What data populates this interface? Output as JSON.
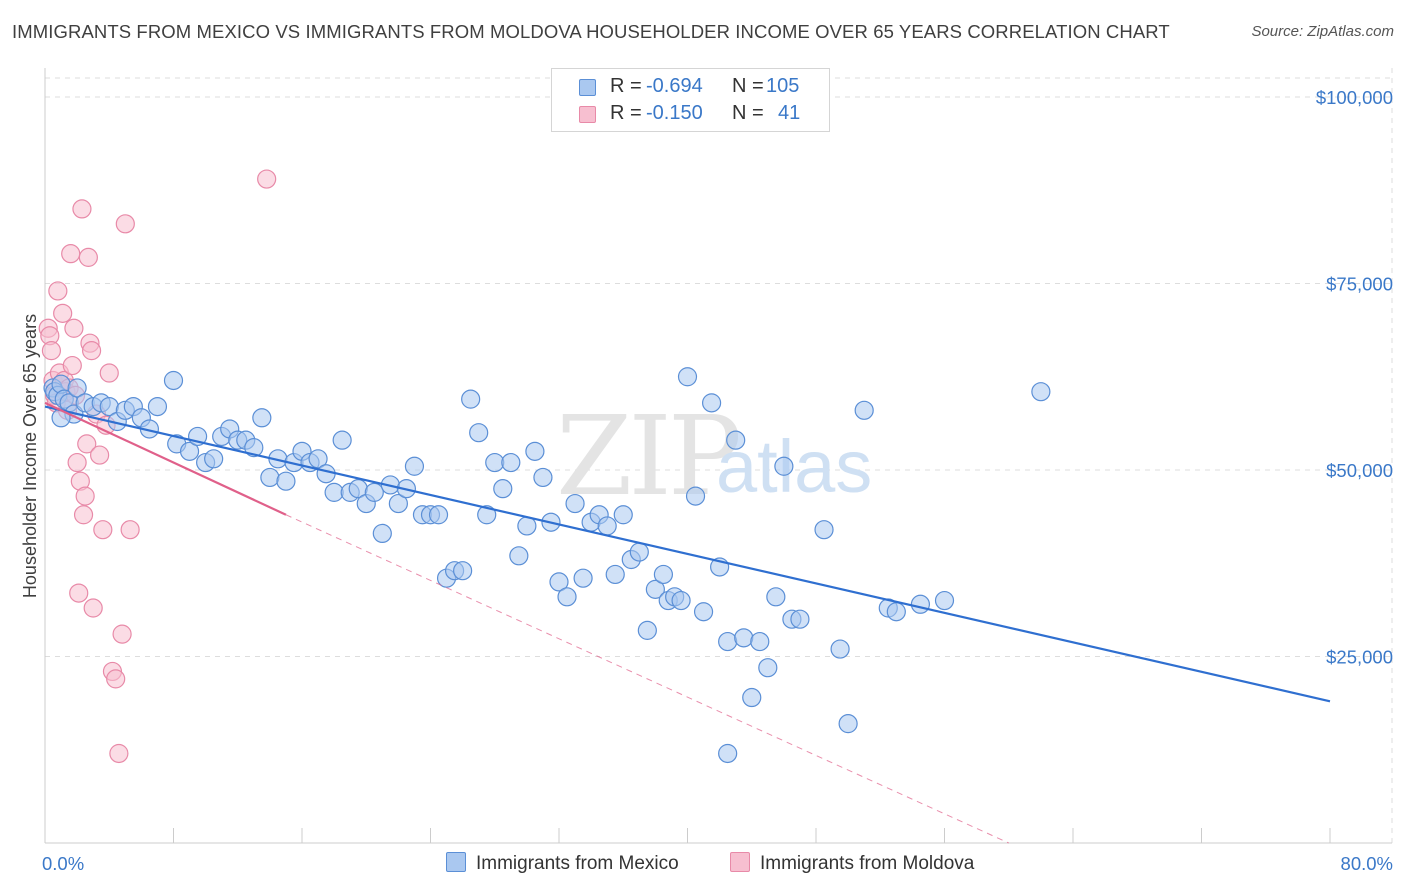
{
  "title": "IMMIGRANTS FROM MEXICO VS IMMIGRANTS FROM MOLDOVA HOUSEHOLDER INCOME OVER 65 YEARS CORRELATION CHART",
  "source": "Source: ZipAtlas.com",
  "watermark": {
    "zip": "ZIP",
    "atlas": "atlas"
  },
  "legend": {
    "rows": [
      {
        "r_label": "R =",
        "r_value": "-0.694",
        "n_label": "N =",
        "n_value": "105"
      },
      {
        "r_label": "R =",
        "r_value": "-0.150",
        "n_label": "N =",
        "n_value": "41"
      }
    ]
  },
  "bottom_legend": [
    "Immigrants from Mexico",
    "Immigrants from Moldova"
  ],
  "colors": {
    "mexico_fill": "#aac8f0",
    "mexico_stroke": "#5b8fd6",
    "mexico_line": "#2f6fd0",
    "moldova_fill": "#f7bfd0",
    "moldova_stroke": "#e88aa8",
    "moldova_line": "#e0608a",
    "tick_text": "#3a78c8",
    "grid": "#dddddd"
  },
  "chart_data": {
    "type": "scatter",
    "title": "IMMIGRANTS FROM MEXICO VS IMMIGRANTS FROM MOLDOVA HOUSEHOLDER INCOME OVER 65 YEARS CORRELATION CHART",
    "xlabel": "",
    "ylabel": "Householder Income Over 65 years",
    "xlim": [
      0,
      80
    ],
    "ylim": [
      0,
      105000
    ],
    "x_tick_labels": [
      "0.0%",
      "80.0%"
    ],
    "y_ticks": [
      25000,
      50000,
      75000,
      100000
    ],
    "y_tick_labels": [
      "$25,000",
      "$50,000",
      "$75,000",
      "$100,000"
    ],
    "series": [
      {
        "name": "Immigrants from Mexico",
        "r": -0.694,
        "n": 105,
        "trend": {
          "x": [
            0,
            80
          ],
          "y": [
            58500,
            19000
          ]
        },
        "points": [
          [
            0.5,
            61000
          ],
          [
            0.6,
            60500
          ],
          [
            0.8,
            60000
          ],
          [
            1.0,
            61500
          ],
          [
            1.2,
            59500
          ],
          [
            1.5,
            59000
          ],
          [
            1.8,
            57500
          ],
          [
            2.0,
            61000
          ],
          [
            2.5,
            59000
          ],
          [
            3.0,
            58500
          ],
          [
            3.5,
            59000
          ],
          [
            4.0,
            58500
          ],
          [
            4.5,
            56500
          ],
          [
            5.0,
            58000
          ],
          [
            5.5,
            58500
          ],
          [
            6.0,
            57000
          ],
          [
            6.5,
            55500
          ],
          [
            7.0,
            58500
          ],
          [
            8.0,
            62000
          ],
          [
            8.2,
            53500
          ],
          [
            9.0,
            52500
          ],
          [
            9.5,
            54500
          ],
          [
            10.0,
            51000
          ],
          [
            10.5,
            51500
          ],
          [
            11.0,
            54500
          ],
          [
            11.5,
            55500
          ],
          [
            12.0,
            54000
          ],
          [
            12.5,
            54000
          ],
          [
            13.0,
            53000
          ],
          [
            13.5,
            57000
          ],
          [
            14.0,
            49000
          ],
          [
            14.5,
            51500
          ],
          [
            15.0,
            48500
          ],
          [
            15.5,
            51000
          ],
          [
            16.0,
            52500
          ],
          [
            16.5,
            51000
          ],
          [
            17.0,
            51500
          ],
          [
            17.5,
            49500
          ],
          [
            18.0,
            47000
          ],
          [
            18.5,
            54000
          ],
          [
            19.0,
            47000
          ],
          [
            19.5,
            47500
          ],
          [
            20.0,
            45500
          ],
          [
            20.5,
            47000
          ],
          [
            21.0,
            41500
          ],
          [
            21.5,
            48000
          ],
          [
            22.0,
            45500
          ],
          [
            22.5,
            47500
          ],
          [
            23.0,
            50500
          ],
          [
            23.5,
            44000
          ],
          [
            24.0,
            44000
          ],
          [
            24.5,
            44000
          ],
          [
            25.0,
            35500
          ],
          [
            25.5,
            36500
          ],
          [
            26.0,
            36500
          ],
          [
            26.5,
            59500
          ],
          [
            27.0,
            55000
          ],
          [
            27.5,
            44000
          ],
          [
            28.0,
            51000
          ],
          [
            28.5,
            47500
          ],
          [
            29.0,
            51000
          ],
          [
            29.5,
            38500
          ],
          [
            30.0,
            42500
          ],
          [
            30.5,
            52500
          ],
          [
            31.0,
            49000
          ],
          [
            31.5,
            43000
          ],
          [
            32.0,
            35000
          ],
          [
            32.5,
            33000
          ],
          [
            33.0,
            45500
          ],
          [
            33.5,
            35500
          ],
          [
            34.0,
            43000
          ],
          [
            34.5,
            44000
          ],
          [
            35.0,
            42500
          ],
          [
            35.5,
            36000
          ],
          [
            36.0,
            44000
          ],
          [
            36.5,
            38000
          ],
          [
            37.0,
            39000
          ],
          [
            37.5,
            28500
          ],
          [
            38.0,
            34000
          ],
          [
            38.5,
            36000
          ],
          [
            38.8,
            32500
          ],
          [
            39.2,
            33000
          ],
          [
            39.6,
            32500
          ],
          [
            40.0,
            62500
          ],
          [
            40.5,
            46500
          ],
          [
            41.0,
            31000
          ],
          [
            41.5,
            59000
          ],
          [
            42.0,
            37000
          ],
          [
            42.5,
            27000
          ],
          [
            43.0,
            54000
          ],
          [
            43.5,
            27500
          ],
          [
            44.0,
            19500
          ],
          [
            44.5,
            27000
          ],
          [
            45.0,
            23500
          ],
          [
            45.5,
            33000
          ],
          [
            46.0,
            50500
          ],
          [
            46.5,
            30000
          ],
          [
            47.0,
            30000
          ],
          [
            48.5,
            42000
          ],
          [
            49.5,
            26000
          ],
          [
            50.0,
            16000
          ],
          [
            51.0,
            58000
          ],
          [
            52.5,
            31500
          ],
          [
            54.5,
            32000
          ],
          [
            56.0,
            32500
          ],
          [
            62.0,
            60500
          ],
          [
            42.5,
            12000
          ],
          [
            53.0,
            31000
          ],
          [
            1.0,
            57000
          ]
        ]
      },
      {
        "name": "Immigrants from Moldova",
        "r": -0.15,
        "n": 41,
        "trend": {
          "x": [
            0,
            15
          ],
          "y": [
            59000,
            44000
          ]
        },
        "trend_extension": {
          "x": [
            15,
            60
          ],
          "y": [
            44000,
            0
          ]
        },
        "points": [
          [
            0.2,
            69000
          ],
          [
            0.3,
            68000
          ],
          [
            0.4,
            66000
          ],
          [
            0.5,
            62000
          ],
          [
            0.6,
            60000
          ],
          [
            0.7,
            59000
          ],
          [
            0.8,
            74000
          ],
          [
            0.9,
            63000
          ],
          [
            1.0,
            61500
          ],
          [
            1.1,
            71000
          ],
          [
            1.2,
            62000
          ],
          [
            1.3,
            60500
          ],
          [
            1.4,
            58000
          ],
          [
            1.5,
            61000
          ],
          [
            1.6,
            79000
          ],
          [
            1.7,
            64000
          ],
          [
            1.8,
            69000
          ],
          [
            1.9,
            60000
          ],
          [
            2.0,
            51000
          ],
          [
            2.1,
            33500
          ],
          [
            2.2,
            48500
          ],
          [
            2.3,
            85000
          ],
          [
            2.4,
            44000
          ],
          [
            2.5,
            46500
          ],
          [
            2.6,
            53500
          ],
          [
            2.7,
            78500
          ],
          [
            2.8,
            67000
          ],
          [
            2.9,
            66000
          ],
          [
            3.0,
            31500
          ],
          [
            3.2,
            57500
          ],
          [
            3.4,
            52000
          ],
          [
            3.6,
            42000
          ],
          [
            3.8,
            56000
          ],
          [
            4.0,
            63000
          ],
          [
            4.2,
            23000
          ],
          [
            4.4,
            22000
          ],
          [
            4.6,
            12000
          ],
          [
            4.8,
            28000
          ],
          [
            5.0,
            83000
          ],
          [
            5.3,
            42000
          ],
          [
            13.8,
            89000
          ]
        ]
      }
    ]
  }
}
